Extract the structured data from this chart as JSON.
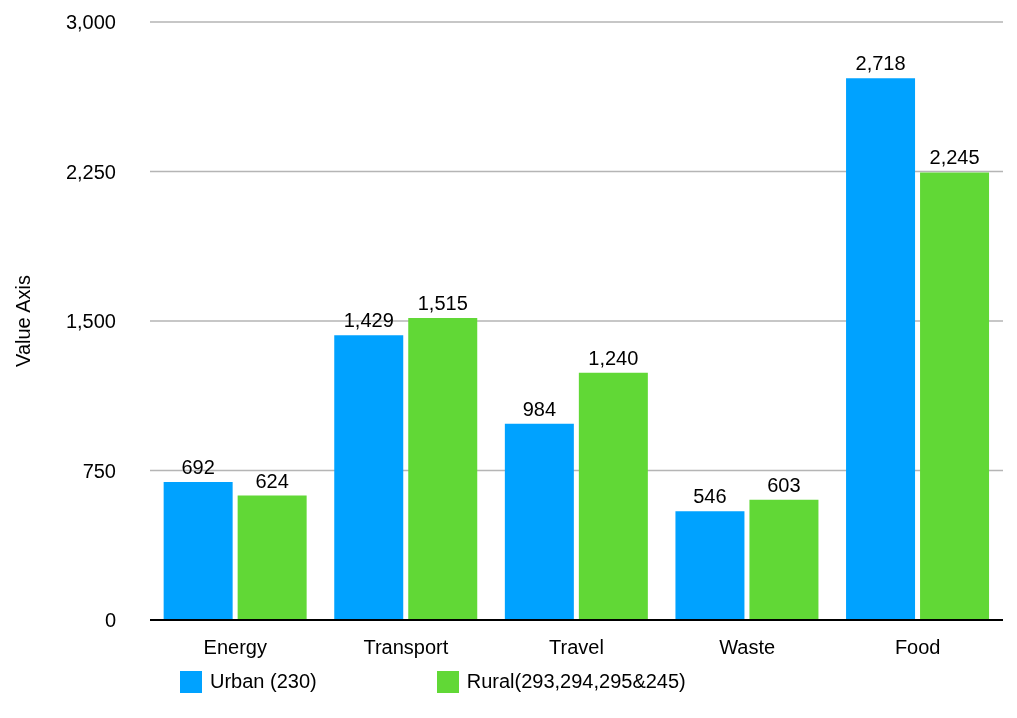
{
  "chart_data": {
    "type": "bar",
    "ylabel": "Value Axis",
    "categories": [
      "Energy",
      "Transport",
      "Travel",
      "Waste",
      "Food"
    ],
    "series": [
      {
        "name": "Urban (230)",
        "color": "#00a2ff",
        "values": [
          692,
          1429,
          984,
          546,
          2718
        ],
        "value_labels": [
          "692",
          "1,429",
          "984",
          "546",
          "2,718"
        ]
      },
      {
        "name": "Rural(293,294,295&245)",
        "color": "#61d836",
        "values": [
          624,
          1515,
          1240,
          603,
          2245
        ],
        "value_labels": [
          "624",
          "1,515",
          "1,240",
          "603",
          "2,245"
        ]
      }
    ],
    "ylim": [
      0,
      3000
    ],
    "yticks": [
      {
        "value": 0,
        "label": "0"
      },
      {
        "value": 750,
        "label": "750"
      },
      {
        "value": 1500,
        "label": "1,500"
      },
      {
        "value": 2250,
        "label": "2,250"
      },
      {
        "value": 3000,
        "label": "3,000"
      }
    ],
    "grid": "y",
    "legend": "bottom left"
  }
}
